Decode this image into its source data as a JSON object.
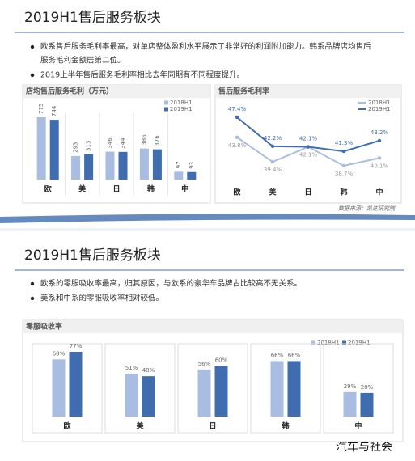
{
  "slides": [
    {
      "title": "2019H1售后服务板块",
      "bullets": [
        "欧系售后服务毛利率最高，对单店整体盈利水平展示了非常好的利润附加能力。韩系品牌店均售后",
        "服务毛利金额居第二位。",
        "2019上半年售后服务毛利率相比去年同期有不同程度提升。"
      ],
      "source": "数据来源：凯达研究院"
    },
    {
      "title": "2019H1售后服务板块",
      "bullets": [
        "欧系的零服吸收率最高，归其原因，与欧系的豪华车品牌占比较高不无关系。",
        "美系和中系的零服吸收率相对较低。"
      ]
    }
  ],
  "watermark": "汽车与社会",
  "chart_data": [
    {
      "type": "bar",
      "title": "店均售后服务毛利（万元）",
      "categories": [
        "欧",
        "美",
        "日",
        "韩",
        "中"
      ],
      "series": [
        {
          "name": "2018H1",
          "color": "#a9bde2",
          "values": [
            775,
            293,
            346,
            386,
            97
          ]
        },
        {
          "name": "2019H1",
          "color": "#3f6db0",
          "values": [
            744,
            313,
            344,
            376,
            93
          ]
        }
      ]
    },
    {
      "type": "line",
      "title": "售后服务毛利率",
      "categories": [
        "欧",
        "美",
        "日",
        "韩",
        "中"
      ],
      "series": [
        {
          "name": "2018H1",
          "color": "#a9bde2",
          "values": [
            43.8,
            39.4,
            42.1,
            38.7,
            40.1
          ],
          "value_labels": [
            "43.8%",
            "39.4%",
            "42.1%",
            "38.7%",
            "40.1%"
          ]
        },
        {
          "name": "2019H1",
          "color": "#3f6db0",
          "values": [
            47.4,
            42.2,
            42.1,
            41.3,
            43.2
          ],
          "value_labels": [
            "47.4%",
            "42.2%",
            "42.1%",
            "41.3%",
            "43.2%"
          ]
        }
      ]
    },
    {
      "type": "bar",
      "title": "零服吸收率",
      "categories": [
        "欧",
        "美",
        "日",
        "韩",
        "中"
      ],
      "series": [
        {
          "name": "2018H1",
          "color": "#a9bde2",
          "values": [
            68,
            51,
            56,
            66,
            29
          ],
          "value_labels": [
            "68%",
            "51%",
            "56%",
            "66%",
            "29%"
          ]
        },
        {
          "name": "2019H1",
          "color": "#3f6db0",
          "values": [
            77,
            48,
            60,
            66,
            28
          ],
          "value_labels": [
            "77%",
            "48%",
            "60%",
            "66%",
            "28%"
          ]
        }
      ]
    }
  ]
}
